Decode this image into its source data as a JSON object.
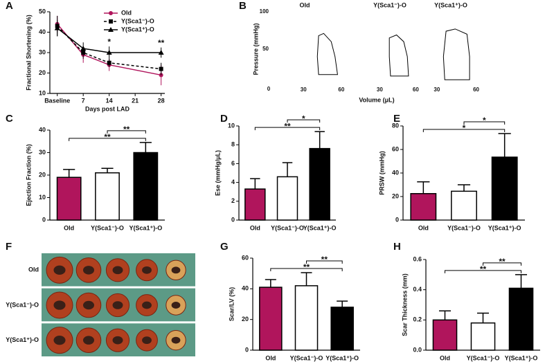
{
  "chart_data": [
    {
      "type": "line",
      "panel": "A",
      "ylabel": "Fractional Shortening (%)",
      "xlabel": "Days post LAD",
      "xlim": [
        -2,
        29
      ],
      "xticks": [
        {
          "value": 0,
          "label": "Baseline"
        },
        7,
        14,
        21,
        28
      ],
      "ylim": [
        10,
        50
      ],
      "yticks": [
        10,
        20,
        30,
        40,
        50
      ],
      "series": [
        {
          "name": "Old",
          "color": "#b0155c",
          "marker": "circle",
          "linestyle": "solid",
          "x": [
            0,
            7,
            14,
            28
          ],
          "values": [
            44,
            29,
            24,
            19
          ],
          "errors": [
            4,
            4,
            3,
            5
          ]
        },
        {
          "name": "Y(Sca1⁻)-O",
          "color": "#000000",
          "marker": "square",
          "linestyle": "dashed",
          "x": [
            0,
            7,
            14,
            28
          ],
          "values": [
            43,
            30,
            25,
            22
          ],
          "errors": [
            5,
            3,
            2,
            3
          ]
        },
        {
          "name": "Y(Sca1⁺)-O",
          "color": "#000000",
          "marker": "triangle",
          "linestyle": "solid",
          "x": [
            0,
            7,
            14,
            28
          ],
          "values": [
            42,
            32,
            30,
            30
          ],
          "errors": [
            4,
            3,
            3,
            2.5
          ]
        }
      ],
      "annotations": [
        {
          "text": "*",
          "x": 14
        },
        {
          "text": "**",
          "x": 28
        }
      ]
    },
    {
      "type": "pvloop",
      "panel": "B",
      "ylabel": "Pressure (mmHg)",
      "xlabel": "Volume (μL)",
      "ylim": [
        0,
        100
      ],
      "yticks": [
        0,
        50,
        100
      ],
      "panels": [
        {
          "title": "Old",
          "xlim": [
            20,
            65
          ],
          "xticks": [
            30,
            60
          ],
          "x": [
            42,
            57,
            55,
            52,
            46,
            42,
            41,
            42
          ],
          "y": [
            16,
            16,
            40,
            60,
            71,
            68,
            40,
            16
          ]
        },
        {
          "title": "Y(Sca1⁻)-O",
          "xlim": [
            20,
            65
          ],
          "xticks": [
            30,
            60
          ],
          "x": [
            39,
            54,
            53,
            50,
            44,
            38,
            38,
            39
          ],
          "y": [
            14,
            14,
            40,
            60,
            69,
            65,
            40,
            14
          ]
        },
        {
          "title": "Y(Sca1⁺)-O",
          "xlim": [
            20,
            65
          ],
          "xticks": [
            30,
            60
          ],
          "x": [
            36,
            55,
            55,
            53,
            44,
            37,
            35,
            36
          ],
          "y": [
            9,
            9,
            40,
            70,
            77,
            74,
            40,
            9
          ]
        }
      ]
    },
    {
      "type": "bar",
      "panel": "C",
      "ylabel": "Ejection Fraction (%)",
      "categories": [
        "Old",
        "Y(Sca1⁻)-O",
        "Y(Sca1⁺)-O"
      ],
      "colors": [
        "#b0155c",
        "#ffffff",
        "#000000"
      ],
      "values": [
        19,
        21,
        30
      ],
      "errors": [
        3.5,
        2,
        4.5
      ],
      "ylim": [
        0,
        40
      ],
      "yticks": [
        0,
        10,
        20,
        30,
        40
      ],
      "annotations": [
        {
          "text": "**",
          "between": [
            0,
            2
          ]
        },
        {
          "text": "**",
          "between": [
            1,
            2
          ]
        }
      ]
    },
    {
      "type": "bar",
      "panel": "D",
      "ylabel": "Ese (mmHg/μL)",
      "categories": [
        "Old",
        "Y(Sca1⁻)-O",
        "Y(Sca1⁺)-O"
      ],
      "colors": [
        "#b0155c",
        "#ffffff",
        "#000000"
      ],
      "values": [
        3.3,
        4.6,
        7.6
      ],
      "errors": [
        1.1,
        1.5,
        1.8
      ],
      "ylim": [
        0,
        10
      ],
      "yticks": [
        0,
        2,
        4,
        6,
        8,
        10
      ],
      "annotations": [
        {
          "text": "**",
          "between": [
            0,
            2
          ]
        },
        {
          "text": "*",
          "between": [
            1,
            2
          ]
        }
      ]
    },
    {
      "type": "bar",
      "panel": "E",
      "ylabel": "PRSW (mmHg)",
      "categories": [
        "Old",
        "Y(Sca1⁻)-O",
        "Y(Sca1⁺)-O"
      ],
      "colors": [
        "#b0155c",
        "#ffffff",
        "#000000"
      ],
      "values": [
        22.5,
        24.5,
        53.5
      ],
      "errors": [
        10,
        5.5,
        20
      ],
      "ylim": [
        0,
        80
      ],
      "yticks": [
        0,
        20,
        40,
        60,
        80
      ],
      "annotations": [
        {
          "text": "*",
          "between": [
            0,
            2
          ]
        },
        {
          "text": "*",
          "between": [
            1,
            2
          ]
        }
      ]
    },
    {
      "type": "image",
      "panel": "F",
      "row_labels": [
        "Old",
        "Y(Sca1⁻)-O",
        "Y(Sca1⁺)-O"
      ]
    },
    {
      "type": "bar",
      "panel": "G",
      "ylabel": "Scar/LV (%)",
      "categories": [
        "Old",
        "Y(Sca1⁻)-O",
        "Y(Sca1⁺)-O"
      ],
      "colors": [
        "#b0155c",
        "#ffffff",
        "#000000"
      ],
      "values": [
        41,
        42,
        28
      ],
      "errors": [
        5,
        8.5,
        4
      ],
      "ylim": [
        0,
        60
      ],
      "yticks": [
        0,
        20,
        40,
        60
      ],
      "annotations": [
        {
          "text": "**",
          "between": [
            0,
            2
          ]
        },
        {
          "text": "**",
          "between": [
            1,
            2
          ]
        }
      ]
    },
    {
      "type": "bar",
      "panel": "H",
      "ylabel": "Scar Thickness (mm)",
      "categories": [
        "Old",
        "Y(Sca1⁻)-O",
        "Y(Sca1⁺)-O"
      ],
      "colors": [
        "#b0155c",
        "#ffffff",
        "#000000"
      ],
      "values": [
        0.2,
        0.18,
        0.41
      ],
      "errors": [
        0.06,
        0.065,
        0.09
      ],
      "ylim": [
        0,
        0.6
      ],
      "yticks": [
        {
          "value": 0,
          "label": "0.0"
        },
        0.2,
        0.4,
        0.6
      ],
      "annotations": [
        {
          "text": "**",
          "between": [
            0,
            2
          ]
        },
        {
          "text": "**",
          "between": [
            1,
            2
          ]
        }
      ]
    }
  ]
}
